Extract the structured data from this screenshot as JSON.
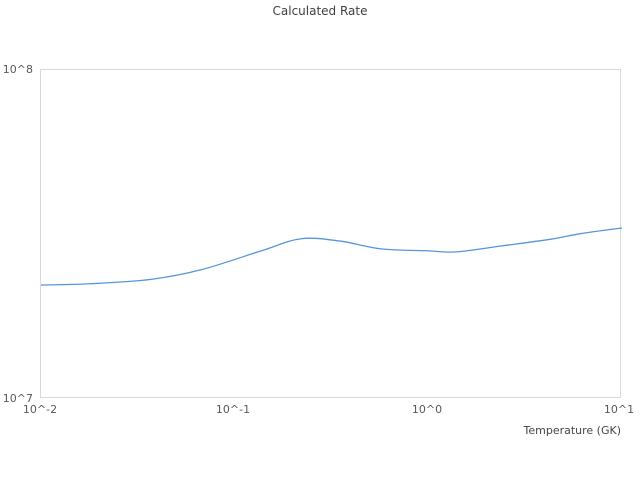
{
  "page": {
    "background": "#ffffff"
  },
  "chart_data": {
    "type": "line",
    "title": "Calculated Rate",
    "xlabel": "Temperature (GK)",
    "ylabel": "",
    "x_scale": "log",
    "y_scale": "log",
    "xlim": [
      0.01,
      10
    ],
    "ylim": [
      10000000,
      100000000
    ],
    "x_tick_labels": [
      "10^-2",
      "10^-1",
      "10^0",
      "10^1"
    ],
    "x_tick_values": [
      0.01,
      0.1,
      1,
      10
    ],
    "y_tick_labels": [
      "10^7",
      "10^8"
    ],
    "y_tick_values": [
      10000000,
      100000000
    ],
    "grid": false,
    "legend_position": "none",
    "series": [
      {
        "name": "Calculated Rate",
        "color": "#5596d8",
        "x": [
          0.01,
          0.018,
          0.037,
          0.067,
          0.137,
          0.22,
          0.35,
          0.57,
          1.0,
          1.4,
          2.4,
          4.3,
          6.1,
          10
        ],
        "y": [
          22200000,
          22400000,
          23100000,
          24700000,
          28200000,
          30700000,
          30200000,
          28600000,
          28200000,
          28000000,
          29200000,
          30600000,
          31800000,
          33100000
        ]
      }
    ],
    "plot_border_color": "#d9d9d9",
    "text_colors": {
      "title": "#3f3f3f",
      "ticks": "#595959",
      "axis_label": "#464646"
    }
  }
}
